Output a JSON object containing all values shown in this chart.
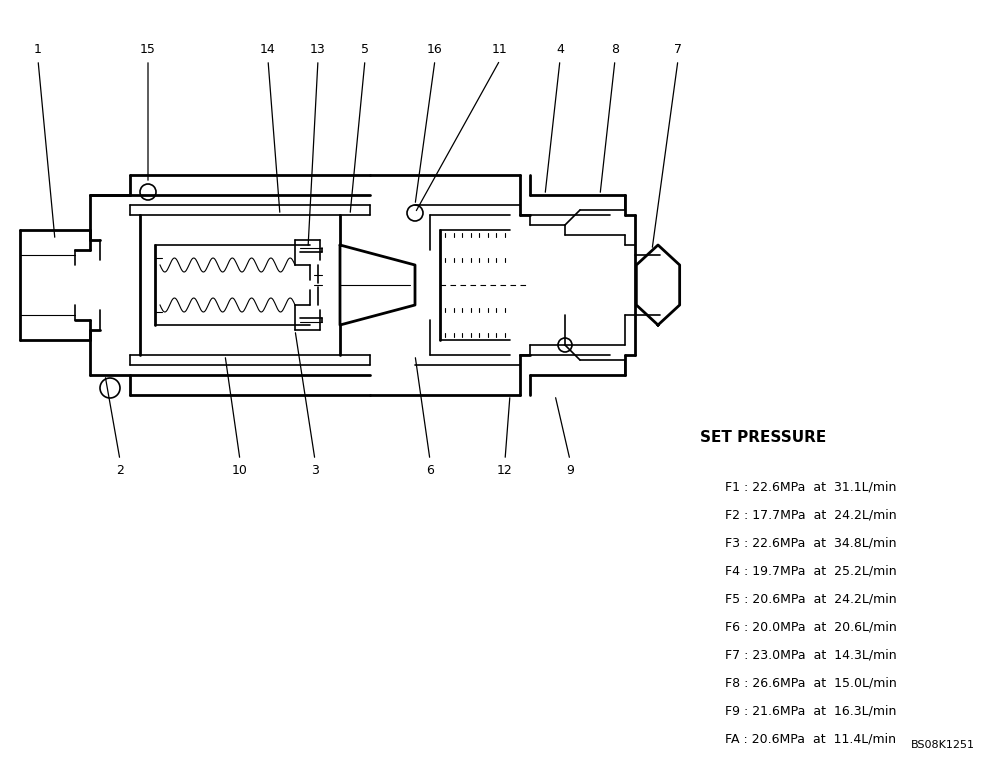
{
  "bg_color": "#ffffff",
  "line_color": "#000000",
  "set_pressure_title": "SET PRESSURE",
  "pressure_lines": [
    "F1 : 22.6MPa  at  31.1L/min",
    "F2 : 17.7MPa  at  24.2L/min",
    "F3 : 22.6MPa  at  34.8L/min",
    "F4 : 19.7MPa  at  25.2L/min",
    "F5 : 20.6MPa  at  24.2L/min",
    "F6 : 20.0MPa  at  20.6L/min",
    "F7 : 23.0MPa  at  14.3L/min",
    "F8 : 26.6MPa  at  15.0L/min",
    "F9 : 21.6MPa  at  16.3L/min",
    "FA : 20.6MPa  at  11.4L/min"
  ],
  "ref_code": "BS08K1251",
  "figsize": [
    10.0,
    7.6
  ],
  "dpi": 100
}
